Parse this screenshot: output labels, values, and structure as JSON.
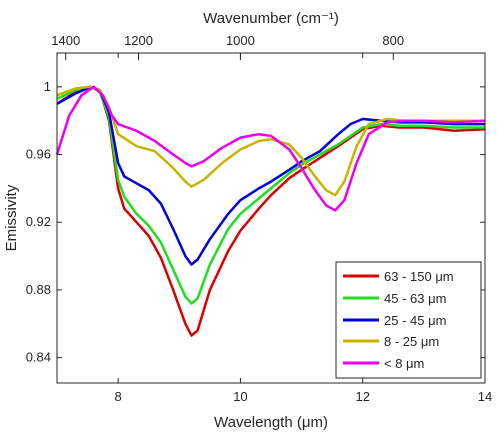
{
  "chart_data": {
    "type": "line",
    "xlabel": "Wavelength (μm)",
    "ylabel": "Emissivity",
    "top_axis_label": "Wavenumber (cm⁻¹)",
    "xlim": [
      7,
      14
    ],
    "ylim": [
      0.825,
      1.02
    ],
    "x_ticks": [
      "8",
      "10",
      "12",
      "14"
    ],
    "y_ticks": [
      "0.84",
      "0.88",
      "0.92",
      "0.96",
      "1"
    ],
    "top_ticks": [
      "1400",
      "1200",
      "1000",
      "800"
    ],
    "grid": false,
    "legend_position": "bottom-right",
    "series": [
      {
        "name": "63 - 150 μm",
        "color": "#dd0000",
        "x": [
          7.0,
          7.3,
          7.55,
          7.7,
          7.85,
          8.0,
          8.1,
          8.3,
          8.5,
          8.7,
          8.9,
          9.1,
          9.2,
          9.3,
          9.5,
          9.8,
          10.0,
          10.3,
          10.5,
          10.8,
          11.0,
          11.3,
          11.6,
          12.0,
          12.3,
          12.6,
          13.0,
          13.5,
          14.0
        ],
        "y": [
          0.99,
          0.997,
          1.0,
          0.998,
          0.98,
          0.94,
          0.928,
          0.92,
          0.912,
          0.899,
          0.88,
          0.86,
          0.853,
          0.856,
          0.88,
          0.903,
          0.915,
          0.928,
          0.936,
          0.946,
          0.951,
          0.958,
          0.965,
          0.975,
          0.977,
          0.976,
          0.976,
          0.974,
          0.975
        ]
      },
      {
        "name": "45 - 63 μm",
        "color": "#22dd22",
        "x": [
          7.0,
          7.3,
          7.55,
          7.7,
          7.85,
          8.0,
          8.1,
          8.3,
          8.5,
          8.7,
          8.9,
          9.1,
          9.2,
          9.3,
          9.5,
          9.8,
          10.0,
          10.3,
          10.5,
          10.8,
          11.0,
          11.3,
          11.6,
          12.0,
          12.3,
          12.6,
          13.0,
          13.5,
          14.0
        ],
        "y": [
          0.993,
          0.998,
          1.0,
          0.997,
          0.982,
          0.945,
          0.935,
          0.925,
          0.918,
          0.908,
          0.892,
          0.876,
          0.872,
          0.875,
          0.895,
          0.916,
          0.925,
          0.934,
          0.94,
          0.949,
          0.954,
          0.96,
          0.966,
          0.976,
          0.978,
          0.977,
          0.977,
          0.976,
          0.976
        ]
      },
      {
        "name": "25 - 45 μm",
        "color": "#0000dd",
        "x": [
          7.0,
          7.3,
          7.55,
          7.7,
          7.85,
          8.0,
          8.1,
          8.3,
          8.5,
          8.7,
          8.9,
          9.1,
          9.2,
          9.3,
          9.5,
          9.8,
          10.0,
          10.3,
          10.5,
          10.8,
          11.0,
          11.3,
          11.6,
          11.8,
          12.0,
          12.3,
          12.6,
          13.0,
          13.5,
          14.0
        ],
        "y": [
          0.99,
          0.996,
          1.0,
          0.998,
          0.985,
          0.955,
          0.947,
          0.943,
          0.939,
          0.931,
          0.916,
          0.9,
          0.895,
          0.898,
          0.91,
          0.925,
          0.933,
          0.94,
          0.944,
          0.951,
          0.956,
          0.962,
          0.972,
          0.978,
          0.981,
          0.98,
          0.979,
          0.979,
          0.978,
          0.978
        ]
      },
      {
        "name": "8 - 25 μm",
        "color": "#c8b400",
        "x": [
          7.0,
          7.3,
          7.55,
          7.7,
          7.85,
          8.0,
          8.3,
          8.6,
          8.9,
          9.1,
          9.2,
          9.4,
          9.7,
          10.0,
          10.3,
          10.5,
          10.8,
          11.0,
          11.2,
          11.4,
          11.55,
          11.7,
          11.9,
          12.1,
          12.4,
          12.7,
          13.0,
          13.5,
          14.0
        ],
        "y": [
          0.995,
          0.999,
          1.0,
          0.998,
          0.988,
          0.972,
          0.965,
          0.962,
          0.952,
          0.944,
          0.941,
          0.945,
          0.955,
          0.963,
          0.968,
          0.969,
          0.966,
          0.958,
          0.948,
          0.939,
          0.936,
          0.944,
          0.965,
          0.978,
          0.981,
          0.98,
          0.98,
          0.98,
          0.98
        ]
      },
      {
        "name": "< 8 μm",
        "color": "#ee00ee",
        "x": [
          7.0,
          7.2,
          7.4,
          7.6,
          7.75,
          7.9,
          8.0,
          8.3,
          8.6,
          8.9,
          9.1,
          9.2,
          9.4,
          9.7,
          10.0,
          10.3,
          10.5,
          10.8,
          11.0,
          11.2,
          11.4,
          11.55,
          11.7,
          11.9,
          12.1,
          12.4,
          12.7,
          13.0,
          13.5,
          14.0
        ],
        "y": [
          0.96,
          0.983,
          0.995,
          1.0,
          0.995,
          0.983,
          0.978,
          0.974,
          0.968,
          0.96,
          0.955,
          0.953,
          0.956,
          0.964,
          0.97,
          0.972,
          0.971,
          0.963,
          0.952,
          0.94,
          0.93,
          0.927,
          0.933,
          0.955,
          0.972,
          0.979,
          0.98,
          0.98,
          0.979,
          0.98
        ]
      }
    ]
  }
}
